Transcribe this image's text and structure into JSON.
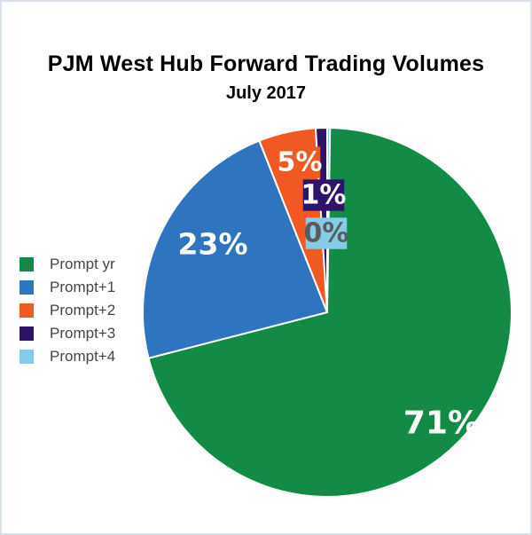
{
  "chart_data": {
    "type": "pie",
    "title": "PJM West Hub Forward Trading Volumes",
    "subtitle": "July 2017",
    "slices": [
      {
        "name": "Prompt yr",
        "value": 71,
        "label": "71%",
        "color": "#138a45"
      },
      {
        "name": "Prompt+1",
        "value": 23,
        "label": "23%",
        "color": "#2f74be"
      },
      {
        "name": "Prompt+2",
        "value": 5,
        "label": "5%",
        "color": "#f05a22"
      },
      {
        "name": "Prompt+3",
        "value": 1,
        "label": "1%",
        "color": "#2e1469"
      },
      {
        "name": "Prompt+4",
        "value": 0,
        "label": "0%",
        "color": "#85cde6"
      }
    ],
    "legend_position": "left"
  }
}
